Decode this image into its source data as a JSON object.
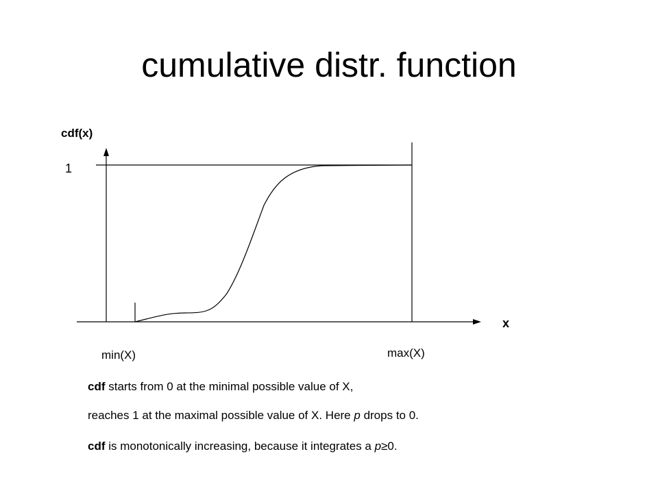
{
  "title": "cumulative distr. function",
  "y_axis_label": "cdf(x)",
  "y_level_label": "1",
  "x_axis_label": "x",
  "min_label": "min(X)",
  "max_label": "max(X)",
  "notes": [
    [
      "cdf",
      " starts from 0 at the minimal possible value of X,"
    ],
    [
      "reaches 1 at the maximal possible value of X. Here ",
      "p",
      " drops to 0."
    ],
    [
      "cdf",
      " is monotonically increasing, because it integrates a ",
      "p",
      "≥0."
    ]
  ]
}
